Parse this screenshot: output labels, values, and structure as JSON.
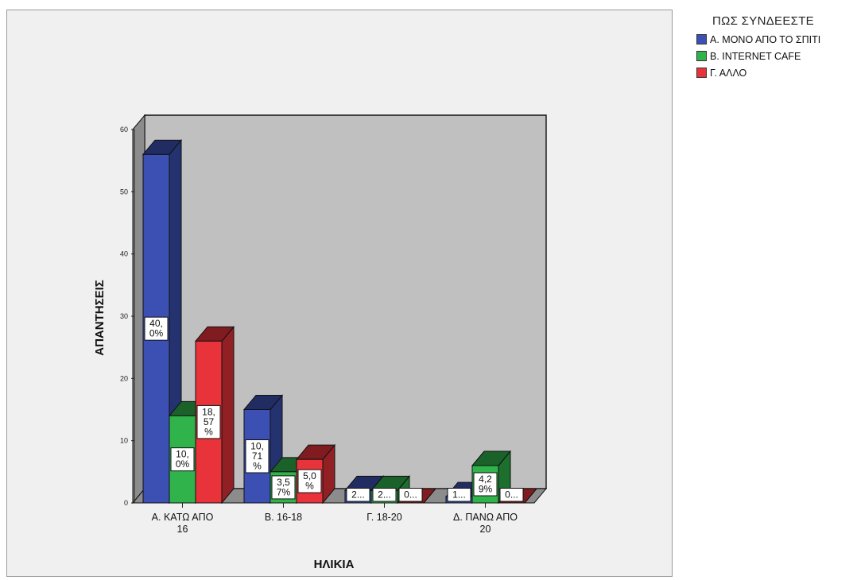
{
  "chart_data": {
    "type": "bar",
    "title": "",
    "xlabel": "ΗΛΙΚΙΑ",
    "ylabel": "ΑΠΑΝΤΗΣΕΙΣ",
    "ylim": [
      0,
      60
    ],
    "yticks": [
      0,
      10,
      20,
      30,
      40,
      50,
      60
    ],
    "grid": false,
    "legend_placement": "top-right",
    "legend_title": "ΠΩΣ ΣΥΝΔΕΕΣΤΕ",
    "categories": [
      {
        "line1": "Α. ΚΑΤΩ ΑΠΟ",
        "line2": "16"
      },
      {
        "line1": "Β. 16-18",
        "line2": ""
      },
      {
        "line1": "Γ. 18-20",
        "line2": ""
      },
      {
        "line1": "Δ. ΠΑΝΩ ΑΠΟ",
        "line2": "20"
      }
    ],
    "series": [
      {
        "name": "Α. ΜΟΝΟ ΑΠΟ ΤΟ ΣΠΙΤΙ",
        "color": "#3c50b4",
        "values": [
          56,
          15,
          2,
          1
        ],
        "labels": [
          [
            "40,",
            "0%"
          ],
          [
            "10,",
            "71",
            "%"
          ],
          [
            "2..."
          ],
          [
            "1..."
          ]
        ]
      },
      {
        "name": "Β. INTERNET CAFE",
        "color": "#2fb34a",
        "values": [
          14,
          5,
          2,
          6
        ],
        "labels": [
          [
            "10,",
            "0%"
          ],
          [
            "3,5",
            "7%"
          ],
          [
            "2..."
          ],
          [
            "4,2",
            "9%"
          ]
        ]
      },
      {
        "name": "Γ. ΑΛΛΟ",
        "color": "#e8333a",
        "values": [
          26,
          7,
          0,
          0
        ],
        "labels": [
          [
            "18,",
            "57",
            "%"
          ],
          [
            "5,0",
            "%"
          ],
          [
            "0..."
          ],
          [
            "0..."
          ]
        ]
      }
    ]
  }
}
